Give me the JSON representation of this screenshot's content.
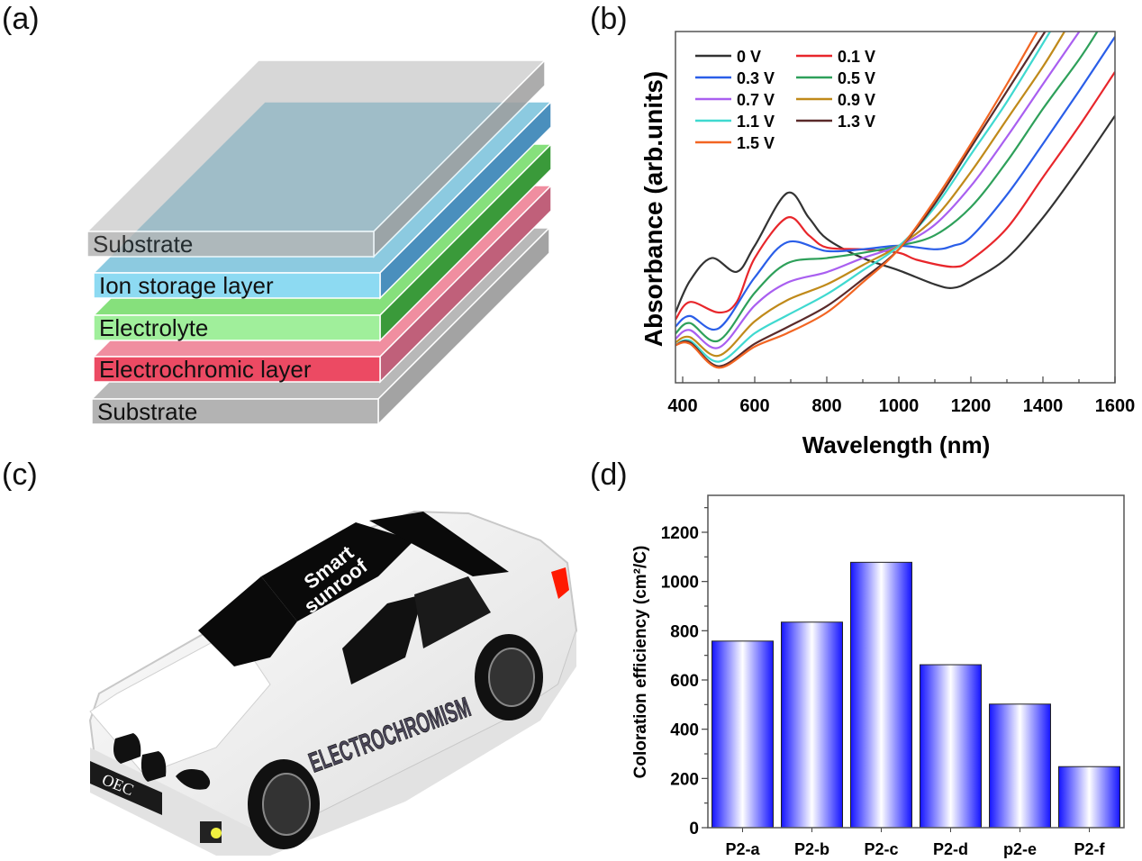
{
  "panels": {
    "a": {
      "label": "(a)",
      "layers": [
        {
          "name": "Substrate",
          "front": "#b3b3b3",
          "top": "#b8b8b8",
          "side": "#a3a3a3"
        },
        {
          "name": "Electrochromic layer",
          "front": "#ec4a63",
          "top": "#f08ea0",
          "side": "#c0607a"
        },
        {
          "name": "Electrolyte",
          "front": "#a0ef9b",
          "top": "#86e07c",
          "side": "#3a9a3a"
        },
        {
          "name": "Ion storage layer",
          "front": "#8ddaf2",
          "top": "#8ccae0",
          "side": "#4a8fbd"
        },
        {
          "name": "Substrate",
          "front": "#b5b5b5",
          "top": "#b0b0b0",
          "side": "#9e9e9e"
        }
      ]
    },
    "b": {
      "label": "(b)"
    },
    "c": {
      "label": "(c)",
      "sunroof_text_1": "Smart",
      "sunroof_text_2": "sunroof",
      "side_text": "ELECTROCHROMISM",
      "plate_text": "OEC"
    },
    "d": {
      "label": "(d)"
    }
  },
  "chart_data": [
    {
      "type": "line",
      "panel": "b",
      "xlabel": "Wavelength (nm)",
      "ylabel": "Absorbance (arb.units)",
      "xlim": [
        380,
        1600
      ],
      "ylim": [
        0,
        1
      ],
      "xticks": [
        400,
        600,
        800,
        1000,
        1200,
        1400,
        1600
      ],
      "yticks": [],
      "grid": false,
      "legend": "top-left",
      "series": [
        {
          "name": "0 V",
          "color": "#333333",
          "x": [
            380,
            420,
            480,
            550,
            600,
            690,
            750,
            800,
            900,
            1000,
            1100,
            1150,
            1200,
            1300,
            1400,
            1500,
            1600
          ],
          "y": [
            0.2,
            0.29,
            0.355,
            0.316,
            0.39,
            0.54,
            0.47,
            0.41,
            0.355,
            0.32,
            0.28,
            0.27,
            0.29,
            0.355,
            0.47,
            0.61,
            0.76
          ]
        },
        {
          "name": "0.1 V",
          "color": "#e8262b",
          "x": [
            380,
            420,
            500,
            550,
            600,
            690,
            750,
            800,
            900,
            1000,
            1050,
            1150,
            1200,
            1300,
            1400,
            1500,
            1600
          ],
          "y": [
            0.18,
            0.23,
            0.2,
            0.23,
            0.355,
            0.47,
            0.42,
            0.385,
            0.38,
            0.37,
            0.35,
            0.33,
            0.35,
            0.44,
            0.585,
            0.73,
            0.885
          ]
        },
        {
          "name": "0.3 V",
          "color": "#2a5ee8",
          "x": [
            380,
            420,
            500,
            600,
            690,
            800,
            900,
            1000,
            1100,
            1150,
            1200,
            1300,
            1400,
            1500,
            1600
          ],
          "y": [
            0.16,
            0.19,
            0.155,
            0.3,
            0.4,
            0.375,
            0.38,
            0.39,
            0.38,
            0.39,
            0.415,
            0.535,
            0.68,
            0.83,
            0.985
          ]
        },
        {
          "name": "0.5 V",
          "color": "#2ea05a",
          "x": [
            380,
            420,
            500,
            600,
            690,
            800,
            900,
            1000,
            1100,
            1200,
            1300,
            1400,
            1500,
            1551
          ],
          "y": [
            0.14,
            0.17,
            0.12,
            0.256,
            0.34,
            0.355,
            0.37,
            0.39,
            0.42,
            0.5,
            0.63,
            0.78,
            0.92,
            1.0
          ]
        },
        {
          "name": "0.7 V",
          "color": "#a95ff0",
          "x": [
            380,
            420,
            500,
            600,
            690,
            800,
            900,
            1000,
            1100,
            1200,
            1300,
            1400,
            1501
          ],
          "y": [
            0.125,
            0.15,
            0.1,
            0.22,
            0.285,
            0.315,
            0.355,
            0.39,
            0.45,
            0.56,
            0.7,
            0.85,
            1.0
          ]
        },
        {
          "name": "0.9 V",
          "color": "#c08a1a",
          "x": [
            380,
            420,
            500,
            600,
            690,
            800,
            900,
            1000,
            1100,
            1200,
            1300,
            1400,
            1460
          ],
          "y": [
            0.115,
            0.13,
            0.077,
            0.175,
            0.235,
            0.28,
            0.335,
            0.39,
            0.47,
            0.6,
            0.75,
            0.9,
            1.0
          ]
        },
        {
          "name": "1.1 V",
          "color": "#3fd9d0",
          "x": [
            380,
            420,
            500,
            600,
            690,
            800,
            900,
            1000,
            1100,
            1200,
            1300,
            1420
          ],
          "y": [
            0.107,
            0.12,
            0.06,
            0.141,
            0.192,
            0.252,
            0.32,
            0.389,
            0.5,
            0.65,
            0.8,
            1.0
          ]
        },
        {
          "name": "1.3 V",
          "color": "#5a2a2a",
          "x": [
            380,
            420,
            500,
            600,
            690,
            800,
            900,
            1000,
            1100,
            1200,
            1300,
            1406
          ],
          "y": [
            0.107,
            0.115,
            0.047,
            0.111,
            0.158,
            0.218,
            0.295,
            0.38,
            0.51,
            0.67,
            0.83,
            1.0
          ]
        },
        {
          "name": "1.5 V",
          "color": "#f26522",
          "x": [
            380,
            420,
            500,
            600,
            690,
            800,
            900,
            1000,
            1100,
            1200,
            1300,
            1384
          ],
          "y": [
            0.107,
            0.111,
            0.043,
            0.103,
            0.141,
            0.2,
            0.286,
            0.38,
            0.52,
            0.68,
            0.85,
            1.0
          ]
        }
      ]
    },
    {
      "type": "bar",
      "panel": "d",
      "categories": [
        "P2-a",
        "P2-b",
        "P2-c",
        "P2-d",
        "p2-e",
        "P2-f"
      ],
      "values": [
        758,
        835,
        1078,
        662,
        502,
        248
      ],
      "xlabel": "",
      "ylabel": "Coloration efficiency (cm²/C)",
      "ylim": [
        0,
        1350
      ],
      "yticks": [
        0,
        200,
        400,
        600,
        800,
        1000,
        1200
      ],
      "grid": false,
      "bar_color": "#1414ff"
    }
  ]
}
